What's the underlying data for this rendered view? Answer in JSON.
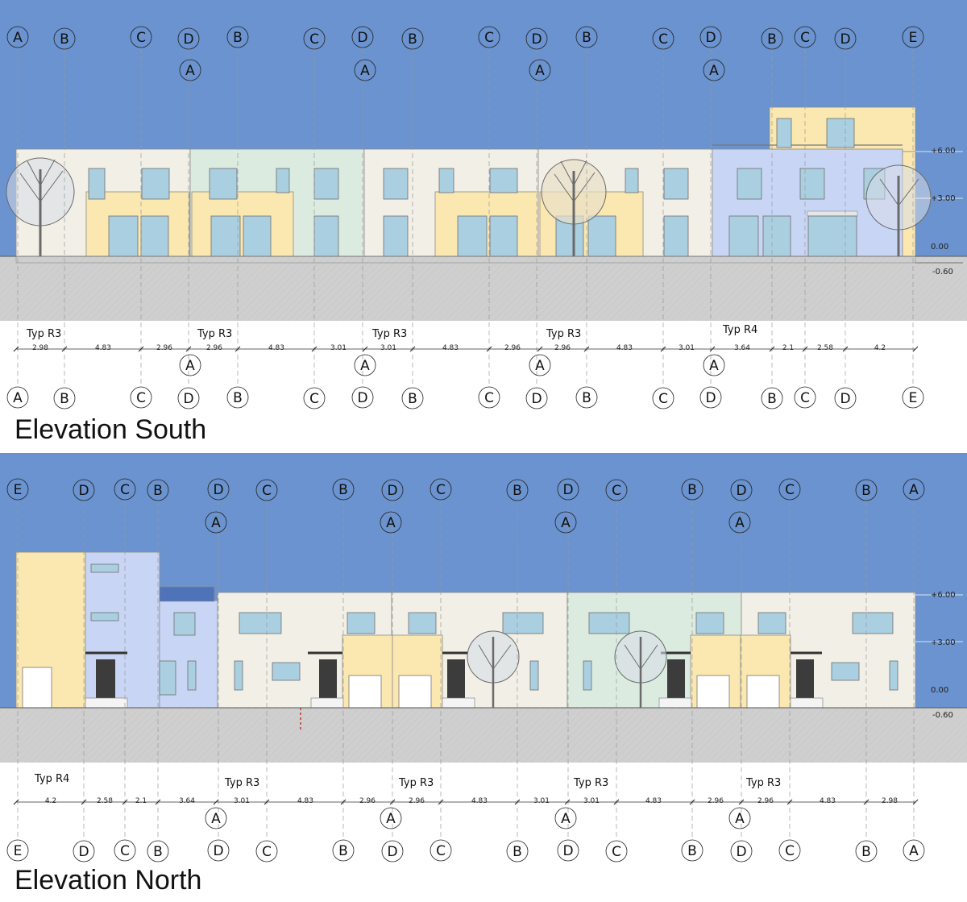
{
  "colors": {
    "sky": "#6a93cf",
    "ground": "#cfcfcf",
    "cream": "#f2efe6",
    "yellow": "#fbe8b0",
    "green": "#dcebdf",
    "blue": "#c8d5f5",
    "window": "#a9cfe0",
    "door": "#3c3c3c"
  },
  "south": {
    "title": "Elevation South",
    "elevations": [
      "+6.00",
      "+3.00",
      "0.00",
      "-0.60"
    ],
    "types": [
      "Typ R3",
      "Typ R3",
      "Typ R3",
      "Typ R3",
      "Typ R4"
    ],
    "dims": [
      "2.98",
      "4.83",
      "2.96",
      "2.96",
      "4.83",
      "3.01",
      "3.01",
      "4.83",
      "2.96",
      "2.96",
      "4.83",
      "3.01",
      "3.64",
      "2.1",
      "2.58",
      "4.2"
    ],
    "top_gridlines": [
      "A",
      "B",
      "C",
      "D",
      "B",
      "C",
      "D",
      "B",
      "C",
      "D",
      "B",
      "C",
      "D",
      "B",
      "C",
      "D",
      "E"
    ],
    "top_sub": [
      "A",
      "A",
      "A",
      "A"
    ],
    "bottom_sub": [
      "A",
      "A",
      "A",
      "A"
    ],
    "bottom_gridlines": [
      "A",
      "B",
      "C",
      "D",
      "B",
      "C",
      "D",
      "B",
      "C",
      "D",
      "B",
      "C",
      "D",
      "B",
      "C",
      "D",
      "E"
    ]
  },
  "north": {
    "title": "Elevation North",
    "elevations": [
      "+6.00",
      "+3.00",
      "0.00",
      "-0.60"
    ],
    "types": [
      "Typ R4",
      "Typ R3",
      "Typ R3",
      "Typ R3",
      "Typ R3"
    ],
    "dims": [
      "4.2",
      "2.58",
      "2.1",
      "3.64",
      "3.01",
      "4.83",
      "2.96",
      "2.96",
      "4.83",
      "3.01",
      "3.01",
      "4.83",
      "2.96",
      "2.96",
      "4.83",
      "2.98"
    ],
    "top_gridlines": [
      "E",
      "D",
      "C",
      "B",
      "D",
      "C",
      "B",
      "D",
      "C",
      "B",
      "D",
      "C",
      "B",
      "D",
      "C",
      "B",
      "A"
    ],
    "top_sub": [
      "A",
      "A",
      "A",
      "A"
    ],
    "bottom_sub": [
      "A",
      "A",
      "A",
      "A"
    ],
    "bottom_gridlines": [
      "E",
      "D",
      "C",
      "B",
      "D",
      "C",
      "B",
      "D",
      "C",
      "B",
      "D",
      "C",
      "B",
      "D",
      "C",
      "B",
      "A"
    ]
  }
}
